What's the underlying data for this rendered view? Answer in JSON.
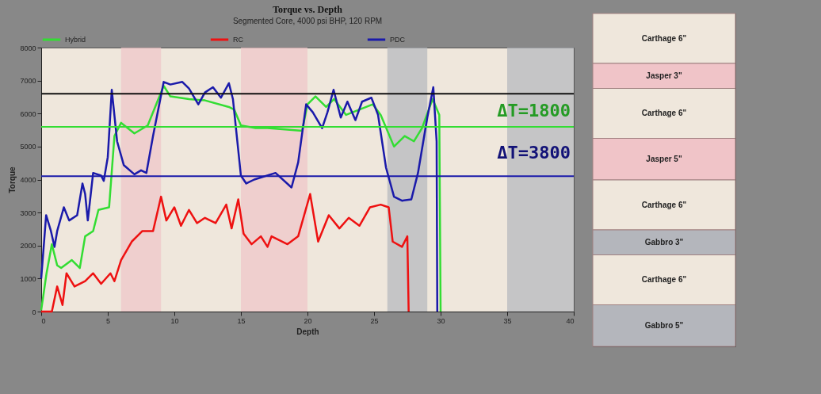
{
  "chart_data": [
    {
      "type": "line",
      "title": "Torque vs. Depth",
      "subtitle": "Segmented Core, 4000 psi BHP, 120 RPM",
      "xlabel": "Depth",
      "ylabel": "Torque",
      "xlim": [
        0,
        40
      ],
      "xticks": [
        0,
        5,
        10,
        15,
        20,
        25,
        30,
        35,
        40
      ],
      "ylim": [
        0,
        8000
      ],
      "yticks": [
        0,
        1000,
        2000,
        3000,
        4000,
        5000,
        6000,
        7000,
        8000
      ],
      "grid": false,
      "legend": "top",
      "marker": "none",
      "line_style": "solid",
      "series": [
        {
          "name": "Hybrid",
          "color": "#33dd33",
          "x": [
            0,
            0.4,
            0.8,
            1.2,
            1.5,
            2.3,
            2.9,
            3.3,
            3.9,
            4.3,
            5.1,
            5.5,
            6.0,
            7.0,
            8.0,
            9.2,
            9.7,
            11.1,
            12.3,
            14.1,
            14.5,
            15.0,
            16.1,
            17.0,
            19.6,
            20.0,
            20.6,
            21.4,
            22.0,
            22.9,
            24.9,
            25.5,
            26.5,
            27.3,
            28.0,
            28.6,
            29.4,
            29.9,
            30.0
          ],
          "values": [
            40,
            1160,
            2040,
            1400,
            1320,
            1560,
            1320,
            2280,
            2440,
            3080,
            3160,
            5320,
            5720,
            5400,
            5640,
            6840,
            6520,
            6440,
            6400,
            6200,
            6120,
            5640,
            5560,
            5560,
            5480,
            6280,
            6520,
            6200,
            6440,
            5960,
            6280,
            5960,
            5000,
            5320,
            5160,
            5560,
            6440,
            5960,
            0
          ]
        },
        {
          "name": "RC",
          "color": "#ee1111",
          "x": [
            0,
            0.8,
            1.2,
            1.6,
            1.9,
            2.5,
            3.3,
            3.9,
            4.5,
            5.2,
            5.5,
            6.0,
            6.8,
            7.6,
            8.4,
            9.0,
            9.4,
            10.0,
            10.5,
            11.1,
            11.7,
            12.3,
            13.1,
            13.9,
            14.3,
            14.8,
            15.2,
            15.8,
            16.5,
            17.0,
            17.3,
            18.5,
            19.3,
            20.2,
            20.8,
            21.6,
            22.4,
            23.1,
            23.9,
            24.7,
            25.5,
            26.1,
            26.4,
            27.1,
            27.5,
            27.6
          ],
          "values": [
            0,
            0,
            760,
            200,
            1160,
            760,
            920,
            1160,
            840,
            1160,
            920,
            1560,
            2120,
            2440,
            2440,
            3480,
            2760,
            3160,
            2600,
            3080,
            2680,
            2840,
            2680,
            3240,
            2520,
            3400,
            2360,
            2040,
            2280,
            1960,
            2280,
            2040,
            2280,
            3560,
            2120,
            2920,
            2520,
            2840,
            2600,
            3160,
            3240,
            3160,
            2120,
            1960,
            2280,
            0
          ]
        },
        {
          "name": "PDC",
          "color": "#1a1aaa",
          "x": [
            0,
            0.37,
            0.73,
            1.0,
            1.2,
            1.7,
            2.1,
            2.7,
            3.1,
            3.3,
            3.5,
            3.9,
            4.5,
            4.7,
            5.0,
            5.3,
            5.7,
            6.2,
            7.0,
            7.5,
            7.9,
            8.4,
            9.2,
            9.7,
            10.6,
            11.1,
            11.8,
            12.3,
            12.9,
            13.5,
            14.1,
            14.4,
            15.0,
            15.4,
            16.0,
            17.6,
            18.8,
            19.3,
            19.9,
            20.4,
            21.1,
            21.5,
            21.96,
            22.5,
            23.0,
            23.6,
            24.1,
            24.8,
            25.3,
            25.9,
            26.5,
            27.1,
            27.8,
            28.3,
            29.0,
            29.45,
            29.7,
            29.75
          ],
          "values": [
            1000,
            2920,
            2440,
            1960,
            2440,
            3160,
            2760,
            2920,
            3880,
            3560,
            2760,
            4200,
            4120,
            3960,
            4680,
            6720,
            5160,
            4440,
            4160,
            4280,
            4200,
            5320,
            6960,
            6880,
            6960,
            6760,
            6280,
            6640,
            6800,
            6480,
            6920,
            6440,
            4120,
            3880,
            4000,
            4200,
            3760,
            4520,
            6280,
            6040,
            5560,
            6040,
            6720,
            5880,
            6360,
            5800,
            6360,
            6480,
            5960,
            4360,
            3480,
            3360,
            3400,
            4200,
            5880,
            6800,
            5160,
            0
          ]
        }
      ],
      "ref_lines": [
        {
          "axis": "y",
          "value": 6600,
          "color": "#111111"
        },
        {
          "axis": "y",
          "value": 5600,
          "color": "#33dd33"
        },
        {
          "axis": "y",
          "value": 4100,
          "color": "#1a1aaa"
        }
      ],
      "bands": [
        {
          "axis": "x",
          "from": 6,
          "to": 9,
          "color": "#f0c4c8"
        },
        {
          "axis": "x",
          "from": 15,
          "to": 20,
          "color": "#f0c4c8"
        },
        {
          "axis": "x",
          "from": 26,
          "to": 29,
          "color": "#b4b6bc"
        },
        {
          "axis": "x",
          "from": 35,
          "to": 40,
          "color": "#b4b6bc"
        }
      ],
      "annotations": [
        "ΔT=1800",
        "ΔT=3800"
      ]
    },
    {
      "type": "other",
      "annotations": [
        "Carthage 6\"",
        "Jasper 3\"",
        "Carthage 6\"",
        "Jasper 5\"",
        "Carthage 6\"",
        "Gabbro 3\"",
        "Carthage 6\"",
        "Gabbro 5\""
      ]
    }
  ]
}
